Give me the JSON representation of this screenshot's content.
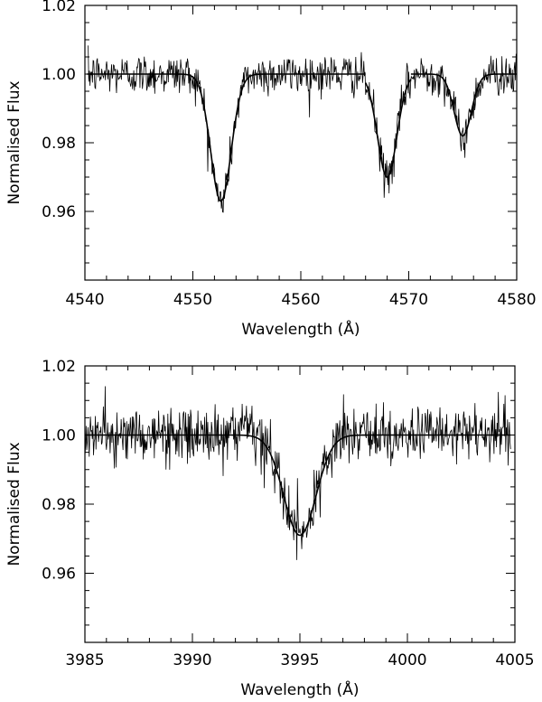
{
  "chart_data": [
    {
      "type": "line",
      "xlabel": "Wavelength (Å)",
      "ylabel": "Normalised Flux",
      "xlim": [
        4540,
        4580
      ],
      "ylim": [
        0.94,
        1.02
      ],
      "x_ticks": [
        4540,
        4550,
        4560,
        4570,
        4580
      ],
      "x_tick_labels": [
        "4540",
        "4550",
        "4560",
        "4570",
        "4580"
      ],
      "y_ticks": [
        0.96,
        0.98,
        1.0,
        1.02
      ],
      "y_tick_labels": [
        "0.96",
        "0.98",
        "1.00",
        "1.02"
      ],
      "grid": false,
      "series": [
        {
          "role": "observed",
          "x_range": [
            4540.3,
            4580
          ],
          "noise_sigma": 0.003,
          "lines": [
            {
              "center": 4552.6,
              "depth": 0.037,
              "sigma": 0.95
            },
            {
              "center": 4568.0,
              "depth": 0.03,
              "sigma": 0.9
            },
            {
              "center": 4575.0,
              "depth": 0.018,
              "sigma": 0.8
            }
          ]
        },
        {
          "role": "model",
          "segments": [
            {
              "x_range": [
                4540.2,
                4551.0
              ],
              "center": 4552.6,
              "depth": 0.037,
              "sigma": 0.95
            },
            {
              "x_range": [
                4551.0,
                4555.4
              ],
              "center": 4552.6,
              "depth": 0.037,
              "sigma": 0.95
            },
            {
              "x_range": [
                4555.4,
                4566.0
              ],
              "center": 4552.6,
              "depth": 0.037,
              "sigma": 0.95
            },
            {
              "x_range": [
                4566.0,
                4570.2
              ],
              "center": 4568.0,
              "depth": 0.03,
              "sigma": 0.9
            },
            {
              "x_range": [
                4570.2,
                4580.0
              ],
              "center": 4575.0,
              "depth": 0.018,
              "sigma": 0.8
            }
          ]
        }
      ]
    },
    {
      "type": "line",
      "xlabel": "Wavelength (Å)",
      "ylabel": "Normalised Flux",
      "xlim": [
        3985,
        4005
      ],
      "ylim": [
        0.94,
        1.02
      ],
      "x_ticks": [
        3985,
        3990,
        3995,
        4000,
        4005
      ],
      "x_tick_labels": [
        "3985",
        "3990",
        "3995",
        "4000",
        "4005"
      ],
      "y_ticks": [
        0.96,
        0.98,
        1.0,
        1.02
      ],
      "y_tick_labels": [
        "0.96",
        "0.98",
        "1.00",
        "1.02"
      ],
      "grid": false,
      "series": [
        {
          "role": "observed",
          "x_range": [
            3985,
            4004.8
          ],
          "noise_sigma": 0.004,
          "lines": [
            {
              "center": 3995.0,
              "depth": 0.029,
              "sigma": 0.75
            }
          ]
        },
        {
          "role": "model",
          "segments": [
            {
              "x_range": [
                3985.0,
                3993.6
              ],
              "center": 3995.0,
              "depth": 0.029,
              "sigma": 0.75
            },
            {
              "x_range": [
                3993.6,
                3996.4
              ],
              "center": 3995.0,
              "depth": 0.029,
              "sigma": 0.75
            },
            {
              "x_range": [
                3996.4,
                4004.8
              ],
              "center": 3995.0,
              "depth": 0.029,
              "sigma": 0.75
            }
          ]
        }
      ]
    }
  ]
}
